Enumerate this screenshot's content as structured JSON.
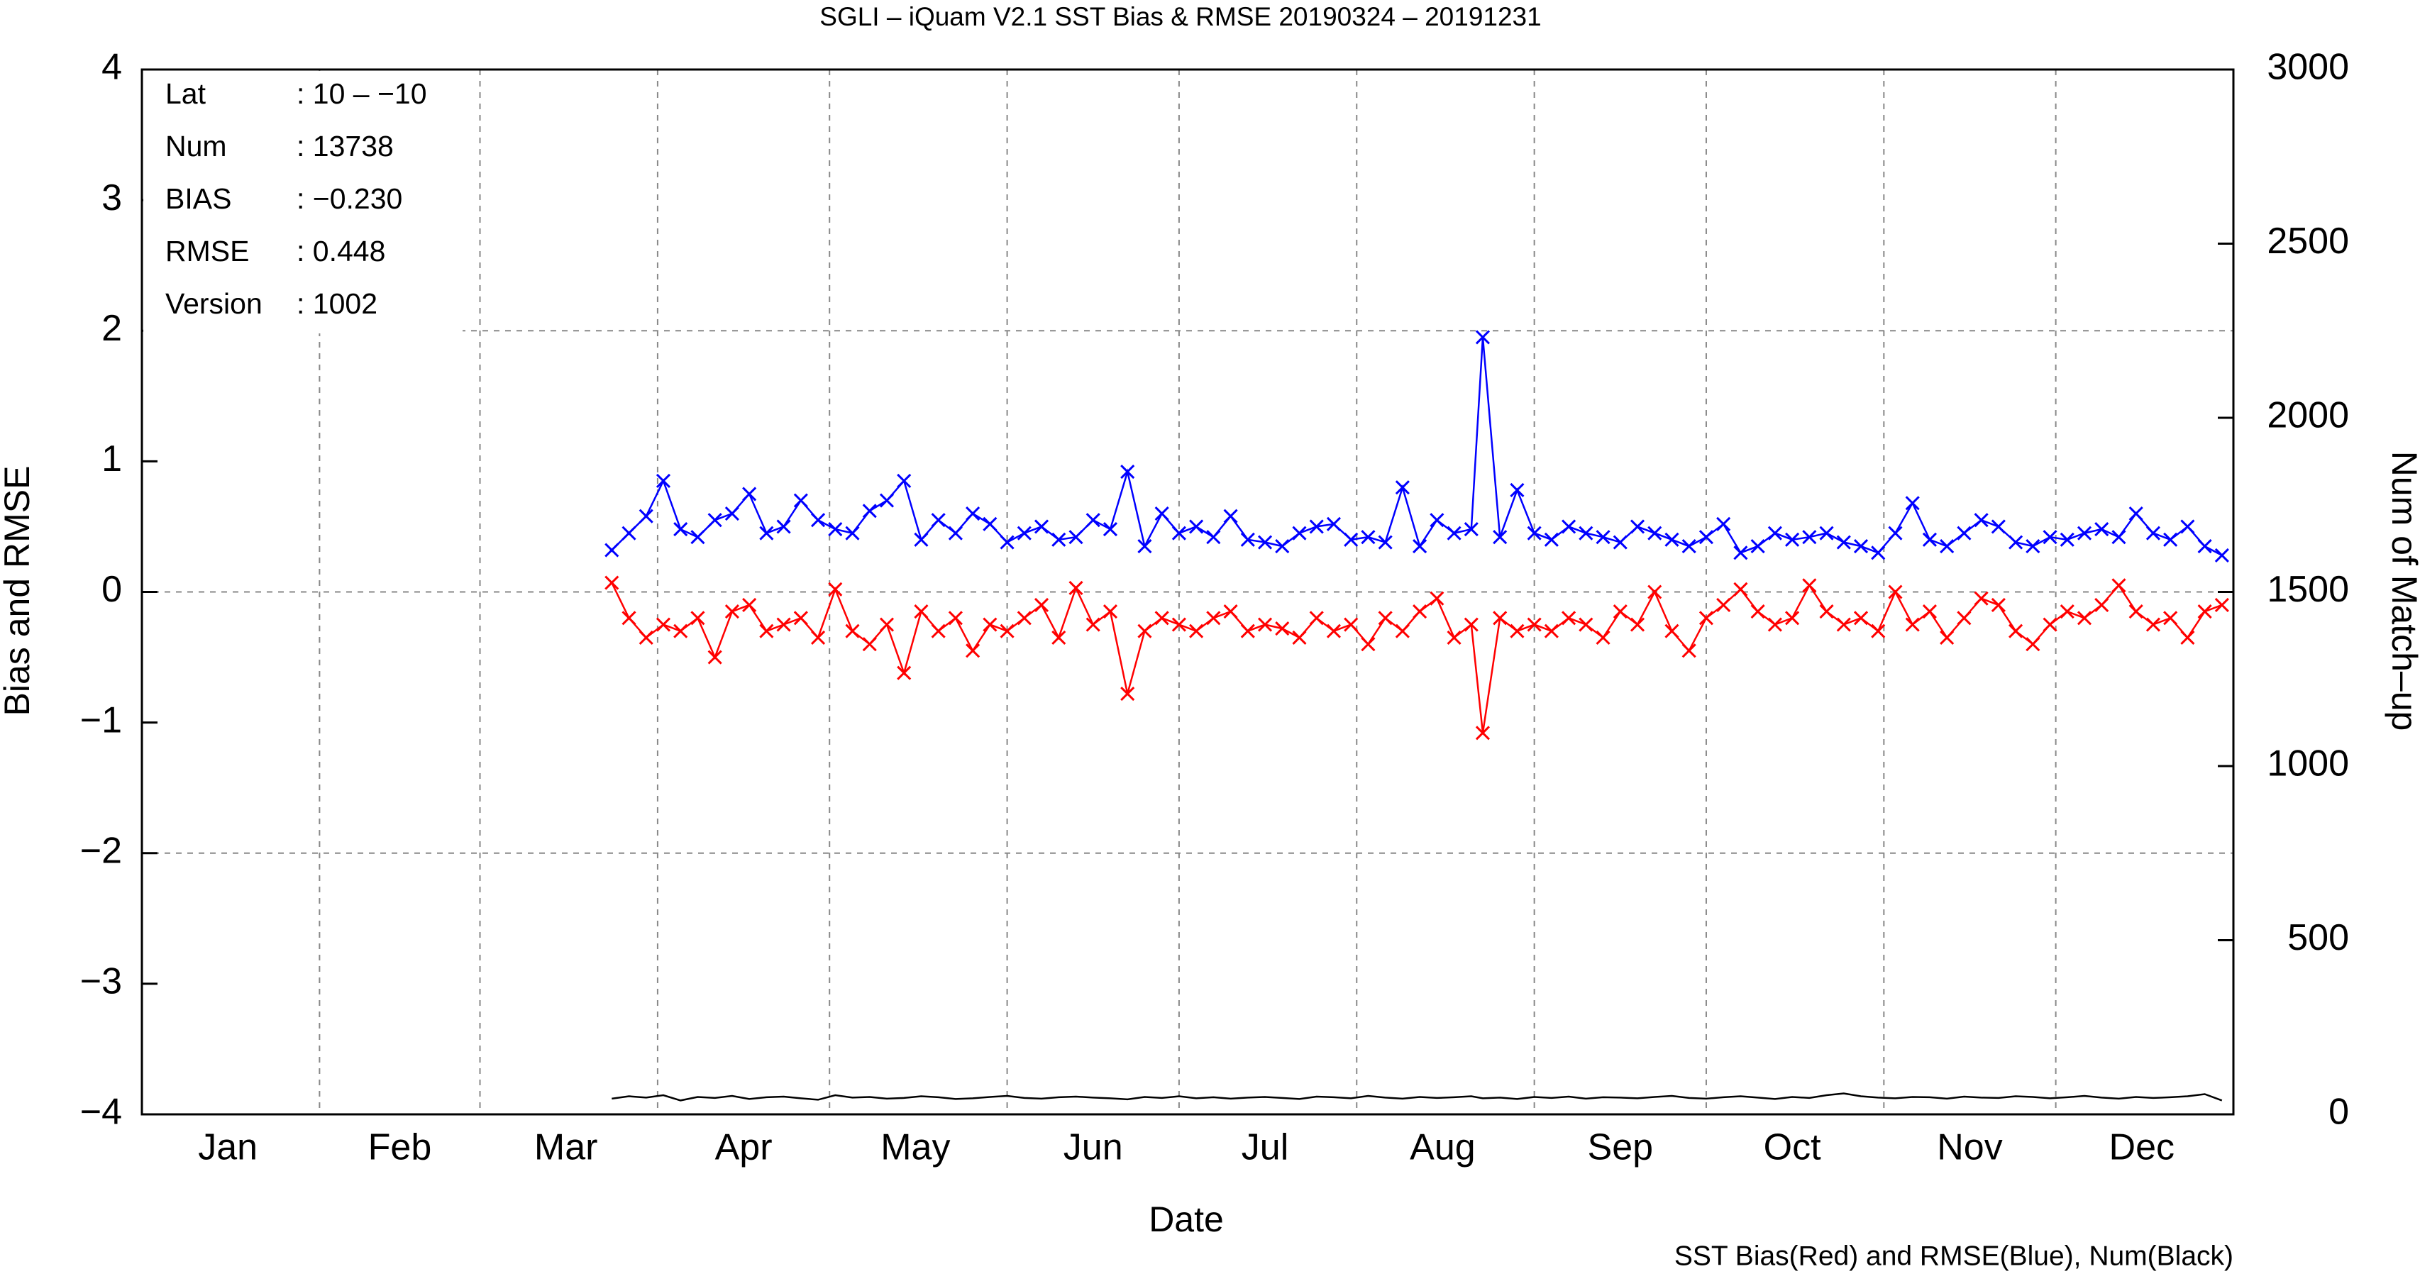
{
  "chart_data": {
    "type": "line",
    "title": "SGLI – iQuam V2.1 SST Bias & RMSE 20190324 – 20191231",
    "xlabel": "Date",
    "ylabel": "Bias and RMSE",
    "y2label": "Num of Match–up",
    "note": "SST Bias(Red) and RMSE(Blue), Num(Black)",
    "stats": [
      {
        "label": "Lat",
        "value": ": 10 – −10"
      },
      {
        "label": "Num",
        "value": ": 13738"
      },
      {
        "label": "BIAS",
        "value": ": −0.230"
      },
      {
        "label": "RMSE",
        "value": ": 0.448"
      },
      {
        "label": "Version",
        "value": ": 1002"
      }
    ],
    "xlim": [
      1,
      366
    ],
    "xticks": [
      {
        "value": 16,
        "label": "Jan"
      },
      {
        "value": 46,
        "label": "Feb"
      },
      {
        "value": 75,
        "label": "Mar"
      },
      {
        "value": 106,
        "label": "Apr"
      },
      {
        "value": 136,
        "label": "May"
      },
      {
        "value": 167,
        "label": "Jun"
      },
      {
        "value": 197,
        "label": "Jul"
      },
      {
        "value": 228,
        "label": "Aug"
      },
      {
        "value": 259,
        "label": "Sep"
      },
      {
        "value": 289,
        "label": "Oct"
      },
      {
        "value": 320,
        "label": "Nov"
      },
      {
        "value": 350,
        "label": "Dec"
      }
    ],
    "xgrid": [
      32,
      60,
      91,
      121,
      152,
      182,
      213,
      244,
      274,
      305,
      335
    ],
    "ylim": [
      -4,
      4
    ],
    "yticks": [
      {
        "value": -4,
        "label": "−4"
      },
      {
        "value": -3,
        "label": "−3"
      },
      {
        "value": -2,
        "label": "−2"
      },
      {
        "value": -1,
        "label": "−1"
      },
      0,
      1,
      2,
      3,
      4
    ],
    "ygrid": [
      -2,
      0,
      2
    ],
    "y2lim": [
      0,
      3000
    ],
    "y2ticks": [
      0,
      500,
      1000,
      1500,
      2000,
      2500,
      3000
    ],
    "x": [
      83,
      86,
      89,
      92,
      95,
      98,
      101,
      104,
      107,
      110,
      113,
      116,
      119,
      122,
      125,
      128,
      131,
      134,
      137,
      140,
      143,
      146,
      149,
      152,
      155,
      158,
      161,
      164,
      167,
      170,
      173,
      176,
      179,
      182,
      185,
      188,
      191,
      194,
      197,
      200,
      203,
      206,
      209,
      212,
      215,
      218,
      221,
      224,
      227,
      230,
      233,
      235,
      238,
      241,
      244,
      247,
      250,
      253,
      256,
      259,
      262,
      265,
      268,
      271,
      274,
      277,
      280,
      283,
      286,
      289,
      292,
      295,
      298,
      301,
      304,
      307,
      310,
      313,
      316,
      319,
      322,
      325,
      328,
      331,
      334,
      337,
      340,
      343,
      346,
      349,
      352,
      355,
      358,
      361,
      364
    ],
    "series": [
      {
        "name": "RMSE",
        "color": "#0000ff",
        "marker": true,
        "values": [
          0.32,
          0.45,
          0.58,
          0.85,
          0.48,
          0.42,
          0.55,
          0.6,
          0.75,
          0.45,
          0.5,
          0.7,
          0.55,
          0.48,
          0.45,
          0.62,
          0.7,
          0.85,
          0.4,
          0.55,
          0.45,
          0.6,
          0.52,
          0.38,
          0.45,
          0.5,
          0.4,
          0.42,
          0.55,
          0.48,
          0.92,
          0.35,
          0.6,
          0.45,
          0.5,
          0.42,
          0.58,
          0.4,
          0.38,
          0.35,
          0.45,
          0.5,
          0.52,
          0.4,
          0.42,
          0.38,
          0.8,
          0.35,
          0.55,
          0.45,
          0.48,
          1.95,
          0.42,
          0.78,
          0.45,
          0.4,
          0.5,
          0.45,
          0.42,
          0.38,
          0.5,
          0.45,
          0.4,
          0.35,
          0.42,
          0.52,
          0.3,
          0.35,
          0.45,
          0.4,
          0.42,
          0.45,
          0.38,
          0.35,
          0.3,
          0.45,
          0.68,
          0.4,
          0.35,
          0.45,
          0.55,
          0.5,
          0.38,
          0.35,
          0.42,
          0.4,
          0.45,
          0.48,
          0.42,
          0.6,
          0.45,
          0.4,
          0.5,
          0.35,
          0.28
        ]
      },
      {
        "name": "Bias",
        "color": "#ff0000",
        "marker": true,
        "values": [
          0.07,
          -0.2,
          -0.35,
          -0.25,
          -0.3,
          -0.2,
          -0.5,
          -0.15,
          -0.1,
          -0.3,
          -0.25,
          -0.2,
          -0.35,
          0.02,
          -0.3,
          -0.4,
          -0.25,
          -0.62,
          -0.15,
          -0.3,
          -0.2,
          -0.45,
          -0.25,
          -0.3,
          -0.2,
          -0.1,
          -0.35,
          0.03,
          -0.25,
          -0.15,
          -0.78,
          -0.3,
          -0.2,
          -0.25,
          -0.3,
          -0.2,
          -0.15,
          -0.3,
          -0.25,
          -0.28,
          -0.35,
          -0.2,
          -0.3,
          -0.25,
          -0.4,
          -0.2,
          -0.3,
          -0.15,
          -0.05,
          -0.35,
          -0.25,
          -1.08,
          -0.2,
          -0.3,
          -0.25,
          -0.3,
          -0.2,
          -0.25,
          -0.35,
          -0.15,
          -0.25,
          0.0,
          -0.3,
          -0.45,
          -0.2,
          -0.1,
          0.02,
          -0.15,
          -0.25,
          -0.2,
          0.05,
          -0.15,
          -0.25,
          -0.2,
          -0.3,
          0.0,
          -0.25,
          -0.15,
          -0.35,
          -0.2,
          -0.05,
          -0.1,
          -0.3,
          -0.4,
          -0.25,
          -0.15,
          -0.2,
          -0.1,
          0.05,
          -0.15,
          -0.25,
          -0.2,
          -0.35,
          -0.15,
          -0.1
        ]
      },
      {
        "name": "Num",
        "color": "#000000",
        "marker": false,
        "axis": "y2",
        "values": [
          45,
          52,
          48,
          55,
          40,
          50,
          47,
          53,
          44,
          49,
          51,
          46,
          42,
          55,
          48,
          50,
          45,
          47,
          52,
          49,
          44,
          46,
          50,
          53,
          47,
          45,
          49,
          51,
          48,
          46,
          43,
          50,
          47,
          52,
          46,
          49,
          45,
          48,
          50,
          47,
          44,
          51,
          49,
          46,
          53,
          48,
          45,
          50,
          47,
          49,
          52,
          46,
          48,
          44,
          50,
          47,
          51,
          45,
          49,
          48,
          46,
          50,
          53,
          47,
          45,
          49,
          52,
          48,
          44,
          50,
          47,
          55,
          60,
          52,
          48,
          46,
          50,
          49,
          45,
          51,
          48,
          47,
          52,
          50,
          46,
          49,
          53,
          48,
          45,
          50,
          47,
          49,
          52,
          58,
          40
        ]
      }
    ]
  }
}
